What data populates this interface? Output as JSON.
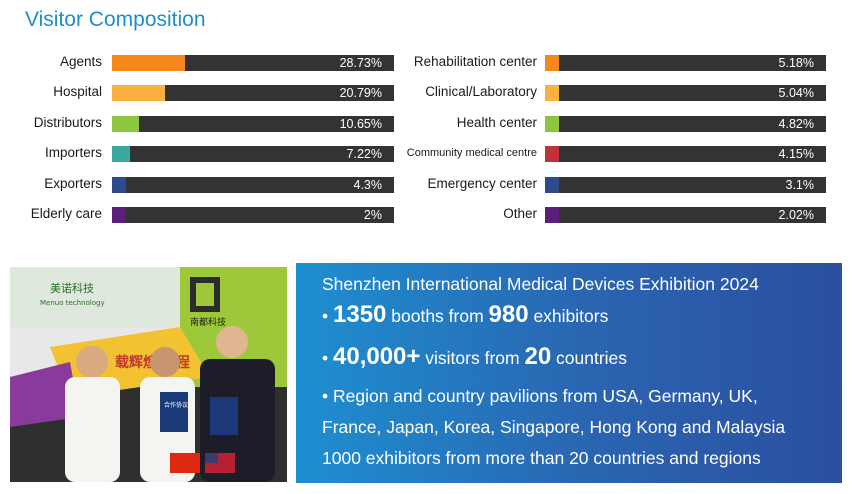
{
  "title": "Visitor Composition",
  "chart_data": {
    "type": "bar",
    "title": "Visitor Composition",
    "series_left": [
      {
        "label": "Agents",
        "value": 28.73,
        "display": "28.73%",
        "color": "#f5871f"
      },
      {
        "label": "Hospital",
        "value": 20.79,
        "display": "20.79%",
        "color": "#fbb040"
      },
      {
        "label": "Distributors",
        "value": 10.65,
        "display": "10.65%",
        "color": "#8dc63f"
      },
      {
        "label": "Importers",
        "value": 7.22,
        "display": "7.22%",
        "color": "#3aa99f"
      },
      {
        "label": "Exporters",
        "value": 4.3,
        "display": "4.3%",
        "color": "#2e4a8e"
      },
      {
        "label": "Elderly care",
        "value": 2,
        "display": "2%",
        "color": "#5b1f7a"
      }
    ],
    "series_right": [
      {
        "label": "Rehabilitation center",
        "value": 5.18,
        "display": "5.18%",
        "color": "#f5871f"
      },
      {
        "label": "Clinical/Laboratory",
        "value": 5.04,
        "display": "5.04%",
        "color": "#fbb040"
      },
      {
        "label": "Health center",
        "value": 4.82,
        "display": "4.82%",
        "color": "#8dc63f"
      },
      {
        "label": "Community medical centre",
        "value": 4.15,
        "display": "4.15%",
        "color": "#c0313a"
      },
      {
        "label": "Emergency center",
        "value": 3.1,
        "display": "3.1%",
        "color": "#2e4a8e"
      },
      {
        "label": "Other",
        "value": 2.02,
        "display": "2.02%",
        "color": "#5b1f7a"
      }
    ],
    "xlim": [
      0,
      100
    ]
  },
  "photo": {
    "sign_left_cn": "美诺科技",
    "sign_left_en": "Menuo technology",
    "sign_right_cn": "南都科技",
    "banner_cn": "载辉煌 万程",
    "document_text": "合作协议书"
  },
  "info": {
    "headline": "Shenzhen International Medical Devices Exhibition 2024",
    "bullet1_num1": "1350",
    "bullet1_text1": " booths from ",
    "bullet1_num2": "980",
    "bullet1_text2": " exhibitors",
    "bullet2_num1": "40,000+",
    "bullet2_text1": " visitors from ",
    "bullet2_num2": "20",
    "bullet2_text2": " countries",
    "bullet3_line1": "• Region and country pavilions from USA, Germany, UK,",
    "bullet3_line2": "France, Japan, Korea, Singapore, Hong Kong and Malaysia",
    "bullet3_line3": "1000 exhibitors from more than 20 countries and regions",
    "bullet_mark": "• "
  }
}
